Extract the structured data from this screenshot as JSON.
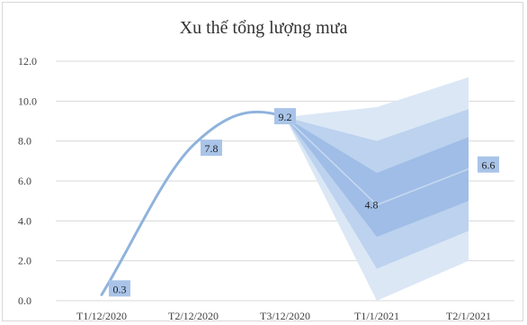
{
  "chart_data": {
    "type": "line",
    "title": "Xu thế tổng lượng mưa",
    "categories": [
      "T1/12/2020",
      "T2/12/2020",
      "T3/12/2020",
      "T1/1/2021",
      "T2/1/2021"
    ],
    "series": [
      {
        "values": [
          0.3,
          7.8,
          9.2,
          null,
          null
        ]
      },
      {
        "values": [
          null,
          null,
          9.2,
          4.8,
          6.6
        ]
      }
    ],
    "data_labels": [
      "0.3",
      "7.8",
      "9.2",
      "4.8",
      "6.6"
    ],
    "forecast_bands": [
      {
        "lower": [
          null,
          null,
          9.2,
          0.0,
          2.0
        ],
        "upper": [
          null,
          null,
          9.2,
          9.7,
          11.2
        ],
        "color": "#dbe7f5"
      },
      {
        "lower": [
          null,
          null,
          9.2,
          1.6,
          3.5
        ],
        "upper": [
          null,
          null,
          9.2,
          8.0,
          9.6
        ],
        "color": "#bcd2ee"
      },
      {
        "lower": [
          null,
          null,
          9.2,
          3.2,
          5.0
        ],
        "upper": [
          null,
          null,
          9.2,
          6.4,
          8.2
        ],
        "color": "#9fbde6"
      }
    ],
    "yticks": [
      "0.0",
      "2.0",
      "4.0",
      "6.0",
      "8.0",
      "10.0",
      "12.0"
    ],
    "ylim": [
      0,
      12
    ],
    "grid": true,
    "colors": {
      "line": "#8fb3dc",
      "label_bg": "#a9c4e8"
    }
  }
}
